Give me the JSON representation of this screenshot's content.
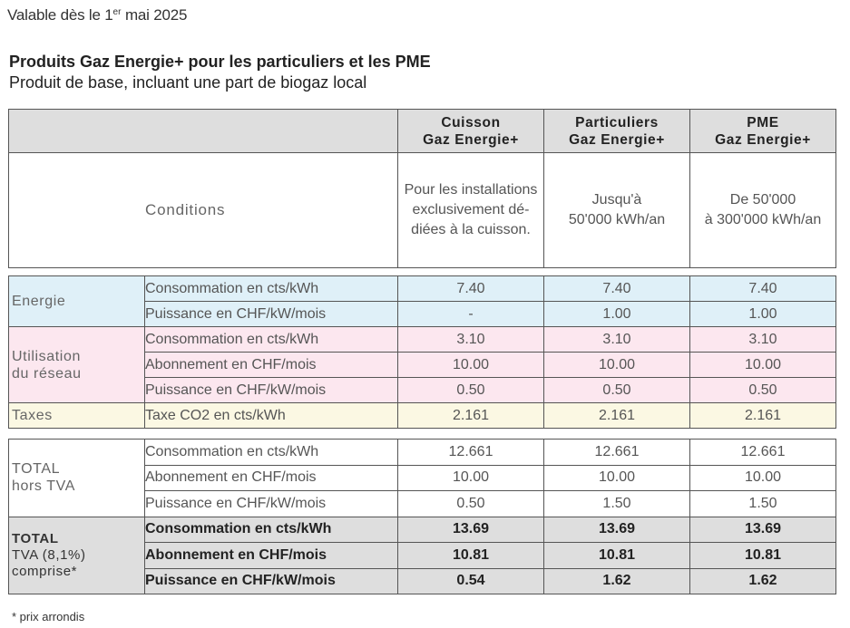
{
  "valid_from": {
    "prefix": "Valable dès le 1",
    "sup": "er",
    "suffix": " mai 2025"
  },
  "title": "Produits Gaz Energie+ pour les particuliers et les PME",
  "subtitle": "Produit de base, incluant une part de biogaz local",
  "columns": [
    {
      "line1": "Cuisson",
      "line2": "Gaz Energie+",
      "condition": [
        "Pour les installations",
        "exclusivement dé-",
        "diées à la cuisson."
      ]
    },
    {
      "line1": "Particuliers",
      "line2": "Gaz Energie+",
      "condition": [
        "Jusqu'à",
        "50'000 kWh/an"
      ]
    },
    {
      "line1": "PME",
      "line2": "Gaz Energie+",
      "condition": [
        "De 50'000",
        "à 300'000 kWh/an"
      ]
    }
  ],
  "conditions_label": "Conditions",
  "groups": [
    {
      "label": [
        "Energie"
      ],
      "rows": [
        {
          "desc": "Consommation en cts/kWh",
          "values": [
            "7.40",
            "7.40",
            "7.40"
          ]
        },
        {
          "desc": "Puissance en CHF/kW/mois",
          "values": [
            "-",
            "1.00",
            "1.00"
          ]
        }
      ]
    },
    {
      "label": [
        "Utilisation",
        "du réseau"
      ],
      "rows": [
        {
          "desc": "Consommation en cts/kWh",
          "values": [
            "3.10",
            "3.10",
            "3.10"
          ]
        },
        {
          "desc": "Abonnement en CHF/mois",
          "values": [
            "10.00",
            "10.00",
            "10.00"
          ]
        },
        {
          "desc": "Puissance en CHF/kW/mois",
          "values": [
            "0.50",
            "0.50",
            "0.50"
          ]
        }
      ]
    },
    {
      "label": [
        "Taxes"
      ],
      "rows": [
        {
          "desc": "Taxe CO2 en cts/kWh",
          "values": [
            "2.161",
            "2.161",
            "2.161"
          ]
        }
      ]
    },
    {
      "label": [
        "TOTAL",
        "hors TVA"
      ],
      "rows": [
        {
          "desc": "Consommation en cts/kWh",
          "values": [
            "12.661",
            "12.661",
            "12.661"
          ]
        },
        {
          "desc": "Abonnement en CHF/mois",
          "values": [
            "10.00",
            "10.00",
            "10.00"
          ]
        },
        {
          "desc": "Puissance en CHF/kW/mois",
          "values": [
            "0.50",
            "1.50",
            "1.50"
          ]
        }
      ]
    },
    {
      "label": [
        "TOTAL",
        "TVA (8,1%)",
        "comprise*"
      ],
      "rows": [
        {
          "desc": "Consommation en cts/kWh",
          "values": [
            "13.69",
            "13.69",
            "13.69"
          ]
        },
        {
          "desc": "Abonnement en CHF/mois",
          "values": [
            "10.81",
            "10.81",
            "10.81"
          ]
        },
        {
          "desc": "Puissance en CHF/kW/mois",
          "values": [
            "0.54",
            "1.62",
            "1.62"
          ]
        }
      ]
    }
  ],
  "colors": {
    "energie": "#dff0f8",
    "reseau": "#fce7ef",
    "taxes": "#fbf8e3",
    "header": "#dedede",
    "total_tva": "#dedede"
  },
  "footnote": "* prix arrondis"
}
